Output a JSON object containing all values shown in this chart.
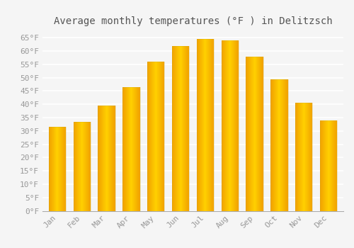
{
  "title": "Average monthly temperatures (°F ) in Delitzsch",
  "months": [
    "Jan",
    "Feb",
    "Mar",
    "Apr",
    "May",
    "Jun",
    "Jul",
    "Aug",
    "Sep",
    "Oct",
    "Nov",
    "Dec"
  ],
  "values": [
    31.5,
    33.5,
    39.5,
    46.5,
    56.0,
    62.0,
    64.5,
    64.0,
    58.0,
    49.5,
    40.5,
    34.0
  ],
  "bar_color_center": "#FFD000",
  "bar_color_edge": "#F0A000",
  "ylim": [
    0,
    68
  ],
  "yticks": [
    0,
    5,
    10,
    15,
    20,
    25,
    30,
    35,
    40,
    45,
    50,
    55,
    60,
    65
  ],
  "background_color": "#F5F5F5",
  "grid_color": "#FFFFFF",
  "title_fontsize": 10,
  "tick_fontsize": 8,
  "tick_color": "#999999",
  "title_color": "#555555"
}
